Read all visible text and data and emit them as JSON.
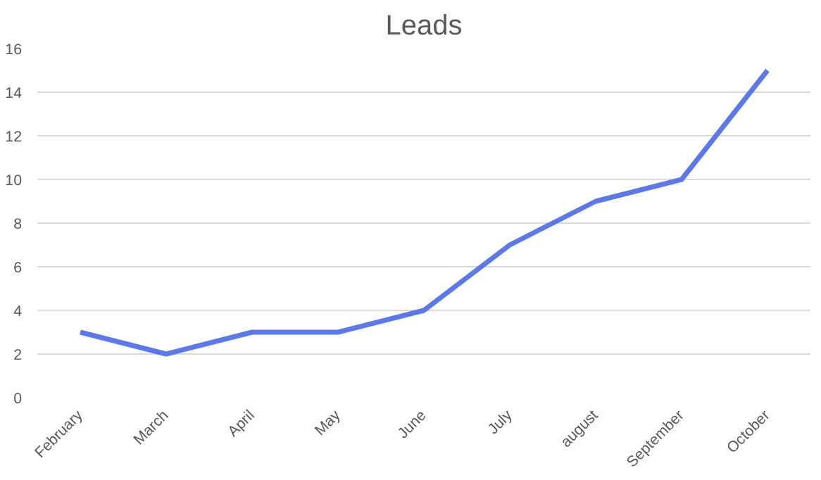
{
  "chart_data": {
    "type": "line",
    "title": "Leads",
    "categories": [
      "February",
      "March",
      "April",
      "May",
      "June",
      "July",
      "august",
      "September",
      "October"
    ],
    "series": [
      {
        "color": "#5b78ec",
        "values": [
          3,
          2,
          3,
          3,
          4,
          7,
          9,
          10,
          15
        ]
      }
    ],
    "ylim": [
      0,
      16
    ],
    "yticks": [
      0,
      2,
      4,
      6,
      8,
      10,
      12,
      14,
      16
    ],
    "grid": "y",
    "marker": "none",
    "line_style": "solid"
  }
}
